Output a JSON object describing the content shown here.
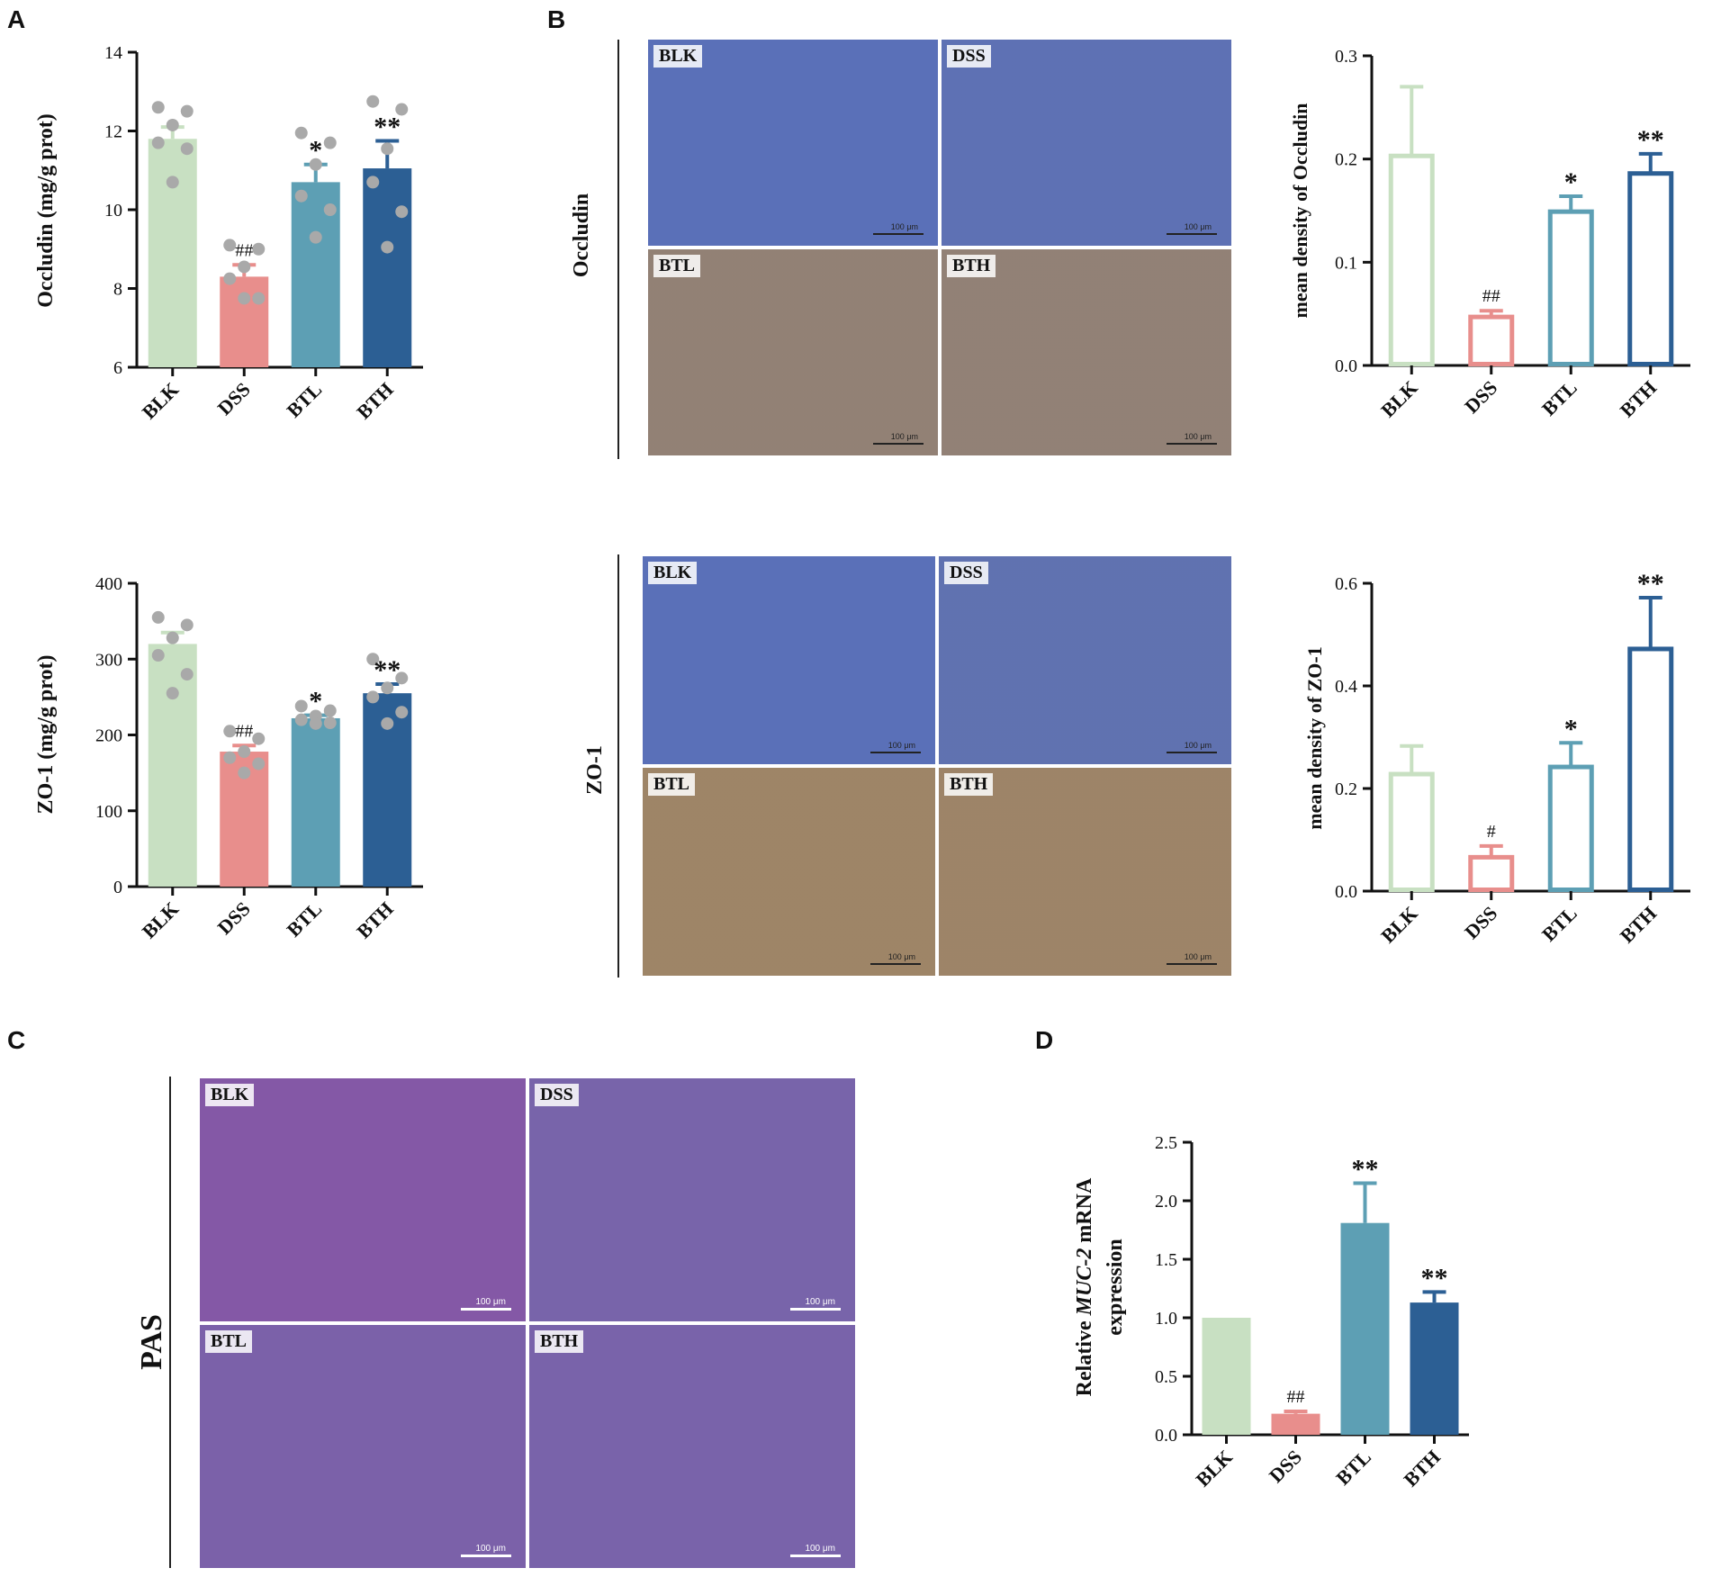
{
  "panels": {
    "A": "A",
    "B": "B",
    "C": "C",
    "D": "D"
  },
  "colors": {
    "BLK": "#c8e0c2",
    "DSS": "#e88e8c",
    "BTL": "#5d9fb4",
    "BTH": "#2c5f94",
    "dots": "#a9a9a9",
    "ihc_bg": "#e9e4da",
    "ihc_blue": "#5a70b8",
    "ihc_brown": "#a9885a",
    "pas_bg": "#a9a7bf",
    "pas_magenta": "#b0309a"
  },
  "tissue_labels": [
    "BLK",
    "DSS",
    "BTL",
    "BTH"
  ],
  "ihc_rows": {
    "occludin": "Occludin",
    "zo1": "ZO-1",
    "pas": "PAS"
  },
  "scale_label": "100 μm",
  "chart_data": [
    {
      "id": "A-occludin",
      "type": "bar",
      "categories": [
        "BLK",
        "DSS",
        "BTL",
        "BTH"
      ],
      "values": [
        11.8,
        8.3,
        10.7,
        11.05
      ],
      "errors": [
        0.3,
        0.3,
        0.45,
        0.7
      ],
      "points": [
        [
          12.6,
          12.5,
          12.15,
          11.7,
          11.55,
          10.7
        ],
        [
          9.1,
          9.0,
          8.55,
          8.25,
          7.75,
          7.75
        ],
        [
          11.95,
          11.7,
          11.15,
          10.35,
          10.0,
          9.3
        ],
        [
          12.75,
          12.55,
          11.55,
          10.7,
          9.95,
          9.05
        ]
      ],
      "annotations": [
        "",
        "##",
        "*",
        "**"
      ],
      "ylabel": "Occludin (mg/g prot)",
      "ylim": [
        6,
        14
      ],
      "yticks": [
        "6",
        "8",
        "10",
        "12",
        "14"
      ],
      "style": "filled"
    },
    {
      "id": "A-zo1",
      "type": "bar",
      "categories": [
        "BLK",
        "DSS",
        "BTL",
        "BTH"
      ],
      "values": [
        320,
        178,
        222,
        255
      ],
      "errors": [
        15,
        8,
        4,
        12
      ],
      "points": [
        [
          355,
          345,
          328,
          305,
          280,
          255
        ],
        [
          205,
          195,
          178,
          170,
          162,
          150
        ],
        [
          238,
          232,
          225,
          220,
          216,
          215
        ],
        [
          300,
          275,
          262,
          250,
          230,
          215
        ]
      ],
      "annotations": [
        "",
        "##",
        "*",
        "**"
      ],
      "ylabel": "ZO-1 (mg/g prot)",
      "ylim": [
        0,
        400
      ],
      "yticks": [
        "0",
        "100",
        "200",
        "300",
        "400"
      ],
      "style": "filled"
    },
    {
      "id": "B-occludin",
      "type": "bar",
      "categories": [
        "BLK",
        "DSS",
        "BTL",
        "BTH"
      ],
      "values": [
        0.203,
        0.047,
        0.149,
        0.186
      ],
      "errors": [
        0.067,
        0.006,
        0.015,
        0.019
      ],
      "annotations": [
        "",
        "##",
        "*",
        "**"
      ],
      "ylabel": "mean density of Occludin",
      "ylim": [
        0,
        0.3
      ],
      "yticks": [
        "0.0",
        "0.1",
        "0.2",
        "0.3"
      ],
      "style": "hollow"
    },
    {
      "id": "B-zo1",
      "type": "bar",
      "categories": [
        "BLK",
        "DSS",
        "BTL",
        "BTH"
      ],
      "values": [
        0.228,
        0.066,
        0.242,
        0.472
      ],
      "errors": [
        0.055,
        0.022,
        0.047,
        0.1
      ],
      "annotations": [
        "",
        "#",
        "*",
        "**"
      ],
      "ylabel": "mean density of ZO-1",
      "ylim": [
        0,
        0.6
      ],
      "yticks": [
        "0.0",
        "0.2",
        "0.4",
        "0.6"
      ],
      "style": "hollow"
    },
    {
      "id": "D-muc2",
      "type": "bar",
      "categories": [
        "BLK",
        "DSS",
        "BTL",
        "BTH"
      ],
      "values": [
        1.0,
        0.18,
        1.81,
        1.13
      ],
      "errors": [
        0,
        0.02,
        0.34,
        0.09
      ],
      "annotations": [
        "",
        "##",
        "**",
        "**"
      ],
      "ylabel": "Relative MUC-2 mRNA expression",
      "ylabel_lines": [
        "Relative ",
        "MUC-2",
        " mRNA",
        "expression"
      ],
      "ylim": [
        0,
        2.5
      ],
      "yticks": [
        "0.0",
        "0.5",
        "1.0",
        "1.5",
        "2.0",
        "2.5"
      ],
      "style": "filled"
    }
  ]
}
